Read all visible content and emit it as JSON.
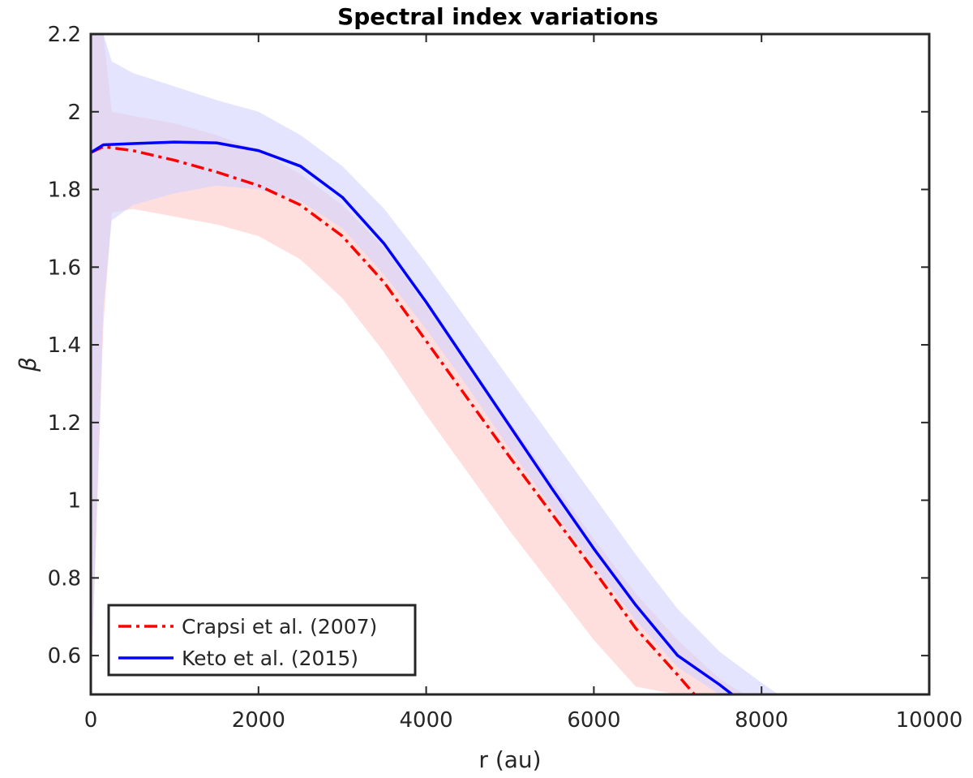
{
  "chart_data": {
    "type": "line",
    "title": "Spectral index variations",
    "xlabel": "r (au)",
    "ylabel": "β",
    "xlim": [
      0,
      10000
    ],
    "ylim": [
      0.5,
      2.2
    ],
    "xticks": [
      0,
      2000,
      4000,
      6000,
      8000,
      10000
    ],
    "yticks": [
      0.6,
      0.8,
      1.0,
      1.2,
      1.4,
      1.6,
      1.8,
      2.0,
      2.2
    ],
    "xtick_labels": [
      "0",
      "2000",
      "4000",
      "6000",
      "8000",
      "10000"
    ],
    "ytick_labels": [
      "0.6",
      "0.8",
      "1",
      "1.2",
      "1.4",
      "1.6",
      "1.8",
      "2",
      "2.2"
    ],
    "legend_position": "bottom-left",
    "series": [
      {
        "name": "Crapsi et al. (2007)",
        "color": "#ff0000",
        "band_color": "#ffc8c8",
        "style": "dash-dot",
        "x": [
          0,
          150,
          500,
          1000,
          1500,
          2000,
          2500,
          3000,
          3500,
          4000,
          4500,
          5000,
          5500,
          6000,
          6500,
          7000,
          7200
        ],
        "y": [
          1.895,
          1.91,
          1.9,
          1.875,
          1.845,
          1.81,
          1.76,
          1.68,
          1.56,
          1.41,
          1.26,
          1.11,
          0.965,
          0.82,
          0.67,
          0.55,
          0.5
        ],
        "band_x": [
          0,
          150,
          250,
          500,
          1000,
          1500,
          2000,
          2500,
          3000,
          3500,
          4000,
          4500,
          5000,
          5500,
          6000,
          6500,
          7000,
          7500,
          7800
        ],
        "band_upper": [
          2.2,
          2.2,
          2.0,
          1.99,
          1.97,
          1.94,
          1.9,
          1.84,
          1.76,
          1.65,
          1.5,
          1.35,
          1.2,
          1.05,
          0.9,
          0.76,
          0.64,
          0.54,
          0.5
        ],
        "band_lower": [
          0.5,
          1.45,
          1.74,
          1.75,
          1.73,
          1.71,
          1.68,
          1.62,
          1.52,
          1.38,
          1.22,
          1.07,
          0.92,
          0.78,
          0.64,
          0.52,
          0.5,
          0.5,
          0.5
        ]
      },
      {
        "name": "Keto et al. (2015)",
        "color": "#0000ff",
        "band_color": "#d2d2ff",
        "style": "solid",
        "x": [
          0,
          150,
          500,
          1000,
          1500,
          2000,
          2500,
          3000,
          3500,
          4000,
          4500,
          5000,
          5500,
          6000,
          6500,
          7000,
          7500,
          7650
        ],
        "y": [
          1.895,
          1.915,
          1.918,
          1.922,
          1.92,
          1.9,
          1.86,
          1.78,
          1.66,
          1.51,
          1.35,
          1.19,
          1.03,
          0.875,
          0.73,
          0.6,
          0.525,
          0.5
        ],
        "band_x": [
          0,
          150,
          250,
          500,
          1000,
          1500,
          2000,
          2500,
          3000,
          3500,
          4000,
          4500,
          5000,
          5500,
          6000,
          6500,
          7000,
          7500,
          8000,
          8200
        ],
        "band_upper": [
          2.2,
          2.2,
          2.13,
          2.1,
          2.065,
          2.03,
          2.0,
          1.94,
          1.86,
          1.75,
          1.61,
          1.46,
          1.31,
          1.16,
          1.01,
          0.86,
          0.72,
          0.61,
          0.53,
          0.5
        ],
        "band_lower": [
          0.5,
          1.5,
          1.72,
          1.76,
          1.79,
          1.81,
          1.8,
          1.77,
          1.7,
          1.58,
          1.44,
          1.29,
          1.13,
          0.98,
          0.83,
          0.69,
          0.57,
          0.5,
          0.5,
          0.5
        ]
      }
    ]
  }
}
